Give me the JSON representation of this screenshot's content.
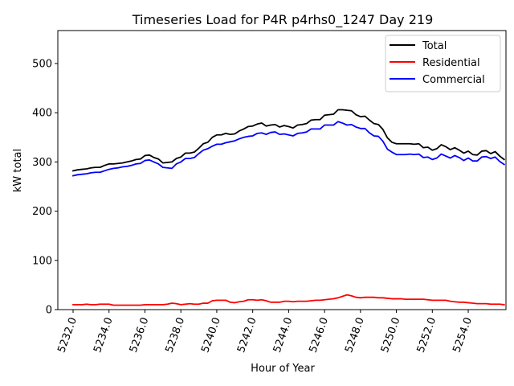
{
  "chart_data": {
    "type": "line",
    "title": "Timeseries Load for P4R p4rhs0_1247  Day 219",
    "xlabel": "Hour of Year",
    "ylabel": "kW total",
    "xlim": [
      5231.15,
      5256.1
    ],
    "ylim": [
      0,
      567
    ],
    "grid": false,
    "legend_position": "top-right",
    "x_ticks": [
      5232,
      5234,
      5236,
      5238,
      5240,
      5242,
      5244,
      5246,
      5248,
      5250,
      5252,
      5254
    ],
    "x_tick_labels": [
      "5232.0",
      "5234.0",
      "5236.0",
      "5238.0",
      "5240.0",
      "5242.0",
      "5244.0",
      "5246.0",
      "5248.0",
      "5250.0",
      "5252.0",
      "5254.0"
    ],
    "y_ticks": [
      0,
      100,
      200,
      300,
      400,
      500
    ],
    "y_tick_labels": [
      "0",
      "100",
      "200",
      "300",
      "400",
      "500"
    ],
    "x_start": 5232,
    "x_step": 0.25,
    "series": [
      {
        "name": "Total",
        "color": "#000000",
        "values": [
          282,
          284,
          285,
          286,
          288,
          289,
          289,
          293,
          296,
          296,
          297,
          298,
          300,
          302,
          305,
          306,
          313,
          314,
          309,
          306,
          298,
          299,
          300,
          307,
          310,
          318,
          318,
          320,
          328,
          337,
          340,
          350,
          355,
          355,
          358,
          356,
          357,
          363,
          367,
          372,
          373,
          377,
          379,
          373,
          375,
          376,
          371,
          374,
          372,
          369,
          375,
          376,
          378,
          385,
          386,
          386,
          395,
          396,
          397,
          406,
          406,
          405,
          404,
          396,
          392,
          393,
          385,
          378,
          376,
          366,
          349,
          340,
          337,
          337,
          337,
          337,
          336,
          337,
          329,
          330,
          324,
          327,
          335,
          331,
          325,
          329,
          324,
          318,
          322,
          315,
          314,
          322,
          323,
          317,
          321,
          312,
          305
        ]
      },
      {
        "name": "Residential",
        "color": "#ff0000",
        "values": [
          10,
          10,
          10,
          11,
          10,
          10,
          11,
          11,
          11,
          9,
          9,
          9,
          9,
          9,
          9,
          9,
          10,
          10,
          10,
          10,
          10,
          11,
          13,
          12,
          10,
          11,
          12,
          11,
          11,
          13,
          13,
          18,
          19,
          19,
          19,
          15,
          14,
          16,
          17,
          20,
          20,
          19,
          20,
          18,
          15,
          15,
          15,
          17,
          17,
          16,
          17,
          17,
          17,
          18,
          19,
          19,
          20,
          21,
          22,
          24,
          27,
          30,
          28,
          25,
          24,
          25,
          25,
          25,
          24,
          24,
          23,
          22,
          22,
          22,
          21,
          21,
          21,
          21,
          21,
          20,
          19,
          19,
          19,
          19,
          17,
          16,
          15,
          15,
          14,
          13,
          12,
          12,
          12,
          11,
          11,
          11,
          10
        ]
      },
      {
        "name": "Commercial",
        "color": "#0000ff",
        "values": [
          272,
          274,
          275,
          276,
          278,
          279,
          279,
          282,
          285,
          287,
          288,
          290,
          291,
          293,
          296,
          297,
          303,
          304,
          300,
          296,
          289,
          288,
          287,
          296,
          300,
          307,
          307,
          309,
          317,
          324,
          327,
          332,
          336,
          336,
          339,
          341,
          343,
          347,
          350,
          352,
          353,
          358,
          359,
          356,
          360,
          361,
          356,
          357,
          355,
          353,
          358,
          359,
          361,
          367,
          367,
          367,
          375,
          375,
          375,
          382,
          379,
          375,
          376,
          371,
          368,
          368,
          359,
          353,
          352,
          342,
          326,
          320,
          315,
          315,
          315,
          316,
          315,
          316,
          309,
          310,
          305,
          308,
          316,
          312,
          308,
          313,
          309,
          303,
          308,
          302,
          302,
          310,
          311,
          307,
          310,
          301,
          295
        ]
      }
    ]
  }
}
